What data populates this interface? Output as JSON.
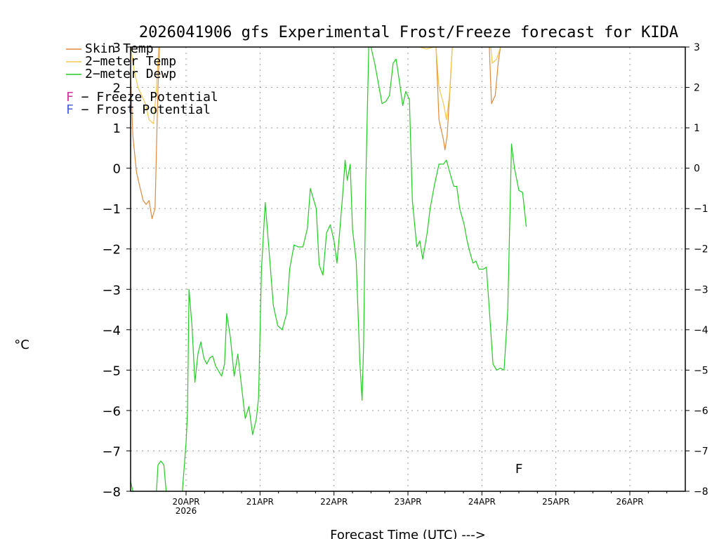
{
  "chart_data": {
    "type": "line",
    "title": "2026041906 gfs Experimental Frost/Freeze forecast for KIDA",
    "ylabel": "°C",
    "xlabel": "Forecast Time (UTC) --->",
    "ylim": [
      -8,
      3
    ],
    "xlim": [
      19.25,
      26.75
    ],
    "y_ticks": [
      -8,
      -7,
      -6,
      -5,
      -4,
      -3,
      -2,
      -1,
      0,
      1,
      2,
      3
    ],
    "y_tick_labels": [
      "−8",
      "−7",
      "−6",
      "−5",
      "−4",
      "−3",
      "−2",
      "−1",
      "0",
      "1",
      "2",
      "3"
    ],
    "x_ticks": [
      20,
      21,
      22,
      23,
      24,
      25,
      26
    ],
    "x_tick_labels": [
      "20APR",
      "21APR",
      "22APR",
      "23APR",
      "24APR",
      "25APR",
      "26APR"
    ],
    "x_sublabel": "2026",
    "grid": true,
    "colors": {
      "skin": "#e08a3c",
      "t2m": "#f2c84b",
      "dewp": "#22cc22",
      "freeze": "#d62f9b",
      "frost": "#4a5fe0"
    },
    "legend": [
      {
        "label": "Skin Temp",
        "color": "#e08a3c"
      },
      {
        "label": "2−meter Temp",
        "color": "#f2c84b"
      },
      {
        "label": "2−meter Dewp",
        "color": "#22cc22"
      }
    ],
    "potential_legend": [
      {
        "letter": "F",
        "text": " − Freeze Potential",
        "color": "#d62f9b"
      },
      {
        "letter": "F",
        "text": " − Frost Potential",
        "color": "#4a5fe0"
      }
    ],
    "markers": [
      {
        "x": 24.5,
        "y": -7.55,
        "text": "F",
        "color": "#d62f9b"
      }
    ],
    "series": [
      {
        "name": "Skin Temp",
        "color": "#e08a3c",
        "segments": [
          [
            [
              19.25,
              2.3
            ],
            [
              19.28,
              0.8
            ],
            [
              19.33,
              -0.1
            ],
            [
              19.38,
              -0.5
            ],
            [
              19.42,
              -0.8
            ],
            [
              19.46,
              -0.9
            ],
            [
              19.5,
              -0.8
            ],
            [
              19.54,
              -1.25
            ],
            [
              19.58,
              -1.0
            ],
            [
              19.62,
              2.0
            ],
            [
              19.64,
              3.0
            ]
          ],
          [
            [
              23.38,
              3.0
            ],
            [
              23.42,
              1.2
            ],
            [
              23.48,
              0.7
            ],
            [
              23.5,
              0.45
            ],
            [
              23.53,
              0.8
            ],
            [
              23.57,
              2.0
            ],
            [
              23.6,
              3.0
            ]
          ],
          [
            [
              24.1,
              3.0
            ],
            [
              24.13,
              1.6
            ],
            [
              24.18,
              1.8
            ],
            [
              24.22,
              2.6
            ],
            [
              24.25,
              3.0
            ]
          ]
        ]
      },
      {
        "name": "2-meter Temp",
        "color": "#f2c84b",
        "segments": [
          [
            [
              19.25,
              3.0
            ],
            [
              19.3,
              2.4
            ],
            [
              19.35,
              2.0
            ],
            [
              19.4,
              1.8
            ],
            [
              19.45,
              1.6
            ],
            [
              19.5,
              1.2
            ],
            [
              19.56,
              1.1
            ],
            [
              19.6,
              2.0
            ],
            [
              19.63,
              3.0
            ]
          ],
          [
            [
              23.16,
              3.0
            ],
            [
              23.25,
              2.95
            ],
            [
              23.35,
              3.0
            ]
          ],
          [
            [
              23.38,
              3.0
            ],
            [
              23.42,
              2.0
            ],
            [
              23.48,
              1.6
            ],
            [
              23.52,
              1.2
            ],
            [
              23.56,
              1.8
            ],
            [
              23.6,
              3.0
            ]
          ],
          [
            [
              24.12,
              3.0
            ],
            [
              24.14,
              2.6
            ],
            [
              24.2,
              2.7
            ],
            [
              24.25,
              3.0
            ]
          ]
        ]
      },
      {
        "name": "2-meter Dewp",
        "color": "#22cc22",
        "segments": [
          [
            [
              19.25,
              -7.75
            ],
            [
              19.28,
              -8.0
            ]
          ],
          [
            [
              19.33,
              -8.0
            ]
          ],
          [
            [
              19.6,
              -8.0
            ],
            [
              19.62,
              -7.35
            ],
            [
              19.66,
              -7.25
            ],
            [
              19.7,
              -7.35
            ],
            [
              19.73,
              -8.0
            ]
          ],
          [
            [
              19.95,
              -8.0
            ],
            [
              20.0,
              -6.8
            ],
            [
              20.02,
              -6.0
            ],
            [
              20.04,
              -3.0
            ],
            [
              20.08,
              -3.9
            ],
            [
              20.12,
              -5.3
            ],
            [
              20.16,
              -4.6
            ],
            [
              20.2,
              -4.3
            ],
            [
              20.24,
              -4.7
            ],
            [
              20.28,
              -4.85
            ],
            [
              20.32,
              -4.7
            ],
            [
              20.36,
              -4.65
            ],
            [
              20.4,
              -4.9
            ],
            [
              20.48,
              -5.15
            ],
            [
              20.52,
              -4.85
            ],
            [
              20.55,
              -3.6
            ],
            [
              20.6,
              -4.2
            ],
            [
              20.65,
              -5.15
            ],
            [
              20.7,
              -4.6
            ],
            [
              20.75,
              -5.4
            ],
            [
              20.8,
              -6.2
            ],
            [
              20.85,
              -5.9
            ],
            [
              20.9,
              -6.6
            ],
            [
              20.95,
              -6.2
            ],
            [
              20.98,
              -5.7
            ],
            [
              21.02,
              -2.5
            ],
            [
              21.07,
              -0.85
            ],
            [
              21.12,
              -2.0
            ],
            [
              21.18,
              -3.4
            ],
            [
              21.24,
              -3.9
            ],
            [
              21.3,
              -4.0
            ],
            [
              21.36,
              -3.6
            ],
            [
              21.4,
              -2.5
            ],
            [
              21.46,
              -1.9
            ],
            [
              21.52,
              -1.95
            ],
            [
              21.58,
              -1.95
            ],
            [
              21.64,
              -1.5
            ],
            [
              21.68,
              -0.5
            ],
            [
              21.72,
              -0.75
            ],
            [
              21.76,
              -1.0
            ],
            [
              21.8,
              -2.4
            ],
            [
              21.85,
              -2.65
            ],
            [
              21.9,
              -1.6
            ],
            [
              21.95,
              -1.4
            ],
            [
              22.0,
              -1.8
            ],
            [
              22.04,
              -2.35
            ],
            [
              22.08,
              -1.5
            ],
            [
              22.12,
              -0.6
            ],
            [
              22.15,
              0.2
            ],
            [
              22.18,
              -0.3
            ],
            [
              22.22,
              0.1
            ],
            [
              22.25,
              -1.5
            ],
            [
              22.3,
              -2.3
            ],
            [
              22.35,
              -4.8
            ],
            [
              22.38,
              -5.75
            ],
            [
              22.4,
              -4.4
            ],
            [
              22.43,
              -0.3
            ],
            [
              22.47,
              3.0
            ]
          ],
          [
            [
              22.5,
              3.0
            ],
            [
              22.55,
              2.6
            ],
            [
              22.6,
              2.1
            ],
            [
              22.65,
              1.6
            ],
            [
              22.7,
              1.65
            ],
            [
              22.75,
              1.8
            ],
            [
              22.8,
              2.6
            ],
            [
              22.84,
              2.7
            ],
            [
              22.88,
              2.2
            ],
            [
              22.93,
              1.55
            ],
            [
              22.97,
              1.9
            ],
            [
              23.02,
              1.7
            ],
            [
              23.06,
              -0.8
            ],
            [
              23.12,
              -1.95
            ],
            [
              23.16,
              -1.8
            ],
            [
              23.2,
              -2.25
            ],
            [
              23.26,
              -1.6
            ],
            [
              23.3,
              -1.0
            ],
            [
              23.36,
              -0.4
            ],
            [
              23.42,
              0.1
            ],
            [
              23.48,
              0.1
            ],
            [
              23.52,
              0.2
            ],
            [
              23.58,
              -0.2
            ],
            [
              23.62,
              -0.45
            ],
            [
              23.66,
              -0.45
            ],
            [
              23.7,
              -1.0
            ],
            [
              23.76,
              -1.4
            ],
            [
              23.8,
              -1.8
            ],
            [
              23.84,
              -2.1
            ],
            [
              23.88,
              -2.35
            ],
            [
              23.92,
              -2.3
            ],
            [
              23.96,
              -2.5
            ],
            [
              24.02,
              -2.5
            ],
            [
              24.06,
              -2.45
            ],
            [
              24.1,
              -3.5
            ],
            [
              24.15,
              -4.85
            ],
            [
              24.2,
              -5.0
            ],
            [
              24.25,
              -4.95
            ],
            [
              24.3,
              -5.0
            ],
            [
              24.35,
              -3.5
            ],
            [
              24.4,
              0.6
            ],
            [
              24.44,
              0.0
            ],
            [
              24.5,
              -0.55
            ],
            [
              24.55,
              -0.6
            ],
            [
              24.6,
              -1.45
            ]
          ]
        ]
      }
    ]
  }
}
